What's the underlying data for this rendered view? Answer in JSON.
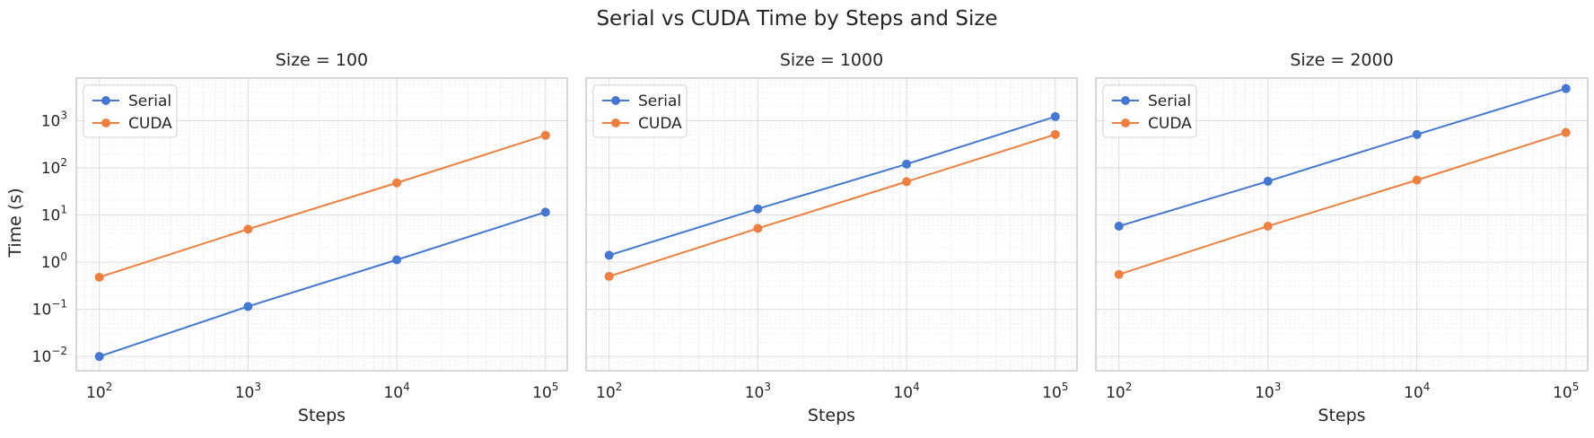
{
  "figure": {
    "title": "Serial vs CUDA Time by Steps and Size"
  },
  "style": {
    "serial_color": "#4477D1",
    "cuda_color": "#EF7F3E",
    "background": "#ffffff",
    "grid_color": "#e6e6e6",
    "spine_color": "#cccccc",
    "marker": "circle"
  },
  "chart_data": [
    {
      "type": "line",
      "title": "Size = 100",
      "xlabel": "Steps",
      "ylabel": "Time (s)",
      "xscale": "log",
      "yscale": "log",
      "xlim": [
        70,
        140000
      ],
      "ylim": [
        0.005,
        8000
      ],
      "xticks": [
        100,
        1000,
        10000,
        100000
      ],
      "xtick_labels": [
        {
          "base": "10",
          "exp": "2"
        },
        {
          "base": "10",
          "exp": "3"
        },
        {
          "base": "10",
          "exp": "4"
        },
        {
          "base": "10",
          "exp": "5"
        }
      ],
      "yticks": [
        0.01,
        0.1,
        1,
        10,
        100,
        1000
      ],
      "ytick_labels": [
        {
          "base": "10",
          "exp": "−2"
        },
        {
          "base": "10",
          "exp": "−1"
        },
        {
          "base": "10",
          "exp": "0"
        },
        {
          "base": "10",
          "exp": "1"
        },
        {
          "base": "10",
          "exp": "2"
        },
        {
          "base": "10",
          "exp": "3"
        }
      ],
      "grid": true,
      "legend_position": "top-left",
      "x": [
        100,
        1000,
        10000,
        100000
      ],
      "series": [
        {
          "name": "Serial",
          "values": [
            0.01,
            0.115,
            1.12,
            11.5
          ]
        },
        {
          "name": "CUDA",
          "values": [
            0.48,
            5.0,
            48,
            490
          ]
        }
      ]
    },
    {
      "type": "line",
      "title": "Size = 1000",
      "xlabel": "Steps",
      "ylabel": "",
      "xscale": "log",
      "yscale": "log",
      "xlim": [
        70,
        140000
      ],
      "ylim": [
        0.005,
        8000
      ],
      "xticks": [
        100,
        1000,
        10000,
        100000
      ],
      "xtick_labels": [
        {
          "base": "10",
          "exp": "2"
        },
        {
          "base": "10",
          "exp": "3"
        },
        {
          "base": "10",
          "exp": "4"
        },
        {
          "base": "10",
          "exp": "5"
        }
      ],
      "yticks": [],
      "ytick_labels": [],
      "grid": true,
      "legend_position": "top-left",
      "x": [
        100,
        1000,
        10000,
        100000
      ],
      "series": [
        {
          "name": "Serial",
          "values": [
            1.4,
            13.5,
            120,
            1220
          ]
        },
        {
          "name": "CUDA",
          "values": [
            0.5,
            5.2,
            51,
            510
          ]
        }
      ]
    },
    {
      "type": "line",
      "title": "Size = 2000",
      "xlabel": "Steps",
      "ylabel": "",
      "xscale": "log",
      "yscale": "log",
      "xlim": [
        70,
        140000
      ],
      "ylim": [
        0.005,
        8000
      ],
      "xticks": [
        100,
        1000,
        10000,
        100000
      ],
      "xtick_labels": [
        {
          "base": "10",
          "exp": "2"
        },
        {
          "base": "10",
          "exp": "3"
        },
        {
          "base": "10",
          "exp": "4"
        },
        {
          "base": "10",
          "exp": "5"
        }
      ],
      "yticks": [],
      "ytick_labels": [],
      "grid": true,
      "legend_position": "top-left",
      "x": [
        100,
        1000,
        10000,
        100000
      ],
      "series": [
        {
          "name": "Serial",
          "values": [
            5.8,
            52,
            510,
            4800
          ]
        },
        {
          "name": "CUDA",
          "values": [
            0.55,
            5.8,
            55,
            560
          ]
        }
      ]
    }
  ]
}
